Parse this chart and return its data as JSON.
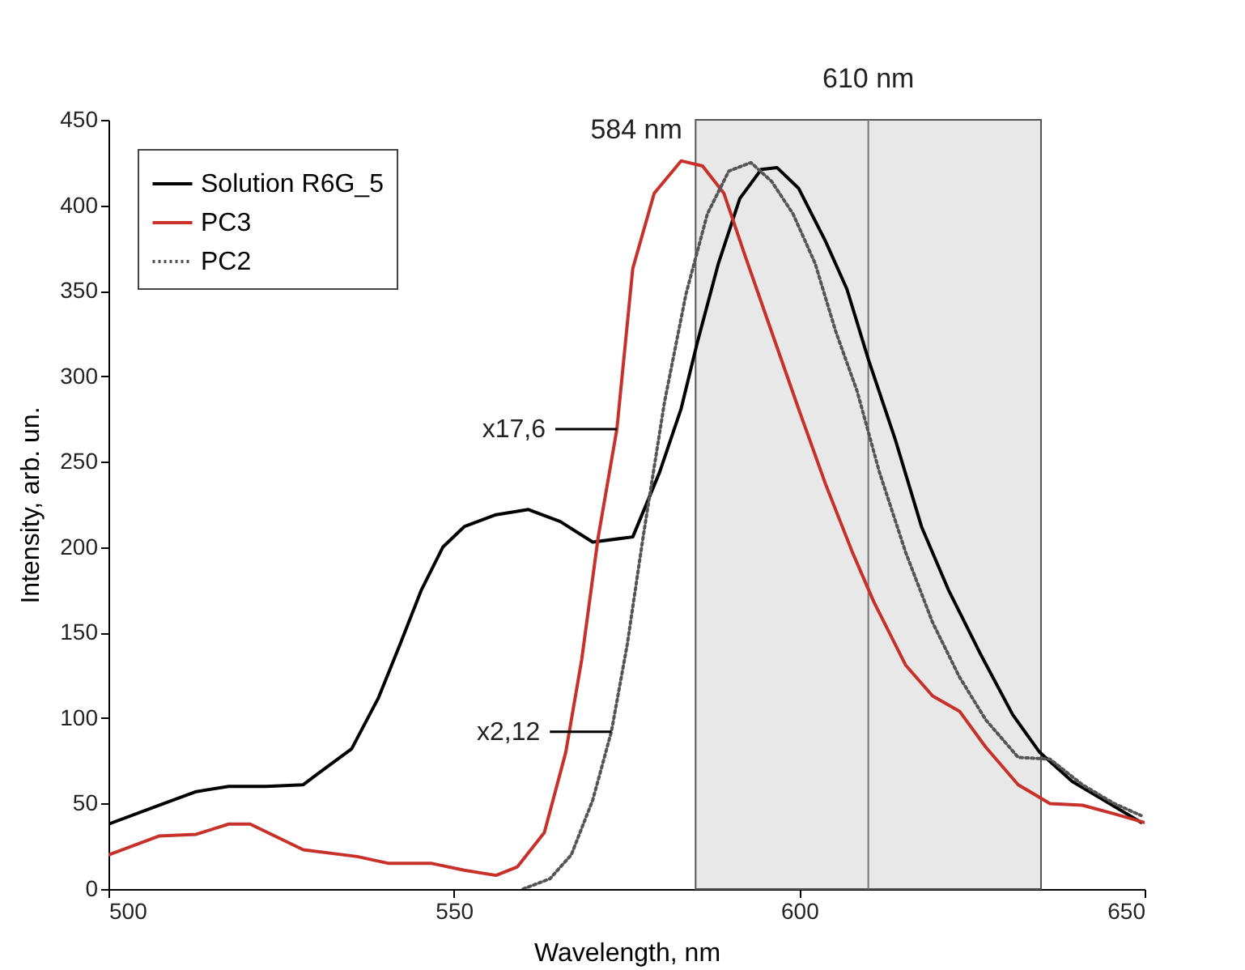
{
  "chart_data": {
    "type": "line",
    "xlabel": "Wavelength, nm",
    "ylabel": "Intensity, arb. un.",
    "xlim": [
      500,
      650
    ],
    "ylim": [
      0,
      450
    ],
    "xticks": [
      500,
      550,
      600,
      650
    ],
    "yticks": [
      0,
      50,
      100,
      150,
      200,
      250,
      300,
      350,
      400,
      450
    ],
    "legend": "top left",
    "grid": false,
    "series": [
      {
        "name": "Solution R6G_5",
        "color": "#000000",
        "line_style": "solid",
        "x": [
          500,
          507.3,
          512.7,
          517.4,
          522.8,
          528.2,
          530.5,
          535.2,
          539.1,
          542.2,
          545.3,
          548.4,
          551.5,
          556.1,
          560.8,
          565.4,
          570.1,
          575.9,
          579.8,
          582.9,
          585.2,
          588.3,
          591.4,
          594.5,
          596.8,
          599.9,
          603.8,
          606.9,
          610,
          613.9,
          617.7,
          621.6,
          626.3,
          630.9,
          634.8,
          639.5,
          644.1,
          649.5
        ],
        "values": [
          38,
          49,
          57,
          60,
          60,
          61,
          68,
          82,
          112,
          143,
          175,
          200,
          212,
          219,
          222,
          215,
          203,
          206,
          244,
          281,
          319,
          366,
          404,
          421,
          422,
          410,
          379,
          351,
          310,
          263,
          212,
          175,
          137,
          102,
          80,
          63,
          52,
          39
        ]
      },
      {
        "name": "PC3",
        "color": "#c8302a",
        "line_style": "solid",
        "x": [
          500,
          507.3,
          512.7,
          517.4,
          520.5,
          528.2,
          536,
          540.6,
          546.8,
          551.5,
          556.1,
          559.2,
          563.1,
          566.2,
          568.5,
          570.9,
          573.6,
          575.9,
          579,
          582.9,
          586,
          589.1,
          592.2,
          596,
          599.9,
          603.8,
          607.7,
          610.8,
          615.4,
          619.3,
          623.2,
          627,
          631.7,
          636.3,
          641,
          645.6,
          649.9
        ],
        "values": [
          20,
          31,
          32,
          38,
          38,
          23,
          19,
          15,
          15,
          11,
          8,
          13,
          33,
          80,
          134,
          206,
          269,
          363,
          407,
          426,
          423,
          407,
          370,
          326,
          281,
          237,
          197,
          168,
          131,
          113,
          104,
          83,
          61,
          50,
          49,
          44,
          39
        ]
      },
      {
        "name": "PC2",
        "color": "#555555",
        "line_style": "dotted",
        "x": [
          560,
          563.9,
          567,
          570.1,
          572.8,
          575.1,
          577.4,
          580.5,
          583.6,
          586.7,
          589.8,
          593,
          596,
          599.1,
          602.3,
          605.3,
          608.4,
          611.6,
          615.4,
          619.3,
          623.2,
          627,
          631.7,
          636.3,
          641,
          645.6,
          649.5
        ],
        "values": [
          0,
          6,
          20,
          52,
          92,
          143,
          206,
          285,
          348,
          395,
          420,
          425,
          414,
          395,
          366,
          326,
          291,
          244,
          197,
          156,
          124,
          99,
          77,
          76,
          61,
          50,
          43
        ]
      }
    ],
    "bands": [
      {
        "axis": "x",
        "from": 585,
        "to": 635,
        "color": "#d9d9d9"
      }
    ],
    "ref_lines": [
      {
        "axis": "x",
        "value": 610,
        "label": "610 nm",
        "color": "#777777"
      }
    ],
    "annotations": [
      {
        "text": "584 nm",
        "x": 584,
        "y": 426
      },
      {
        "text": "x17,6",
        "x": 573.6,
        "y": 269
      },
      {
        "text": "x2,12",
        "x": 572.8,
        "y": 92
      }
    ]
  }
}
